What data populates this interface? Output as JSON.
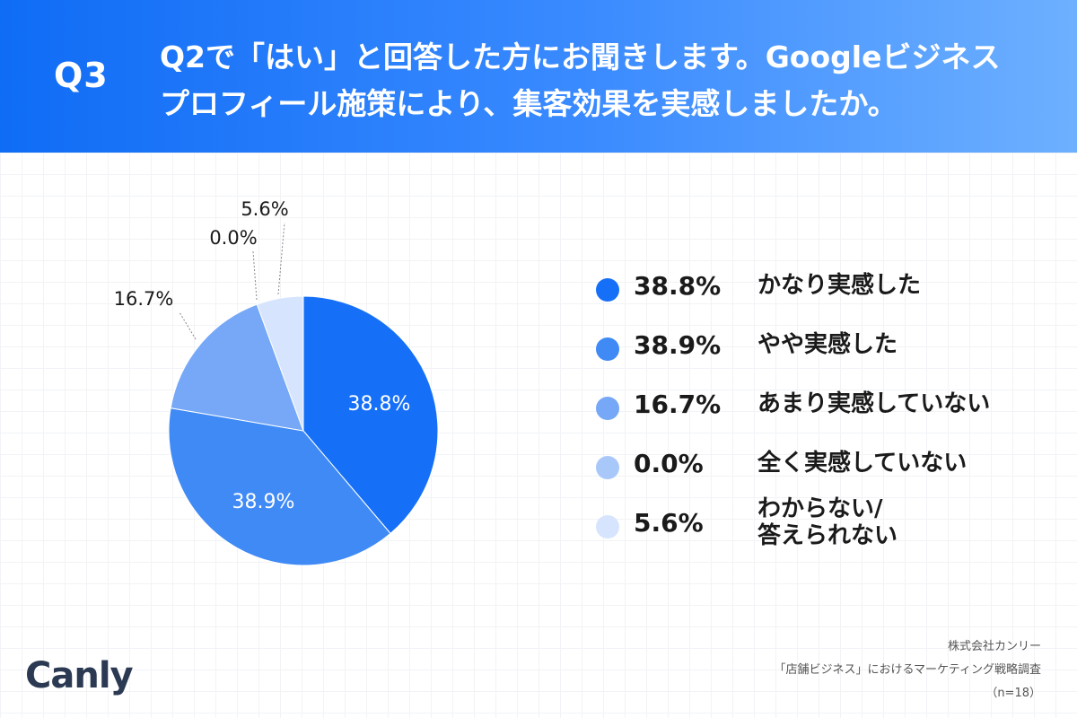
{
  "header": {
    "q_label": "Q3",
    "question_line1": "Q2で「はい」と回答した方にお聞きします。Googleビジネス",
    "question_line2": "プロフィール施策により、集客効果を実感しましたか。"
  },
  "chart_data": {
    "type": "pie",
    "slices": [
      {
        "label": "かなり実感した",
        "value": 38.8,
        "display": "38.8%",
        "color": "#1670f7"
      },
      {
        "label": "やや実感した",
        "value": 38.9,
        "display": "38.9%",
        "color": "#3f8af5"
      },
      {
        "label": "あまり実感していない",
        "value": 16.7,
        "display": "16.7%",
        "color": "#76a8f7"
      },
      {
        "label": "全く実感していない",
        "value": 0.0,
        "display": "0.0%",
        "color": "#a9c8fa"
      },
      {
        "label": "わからない/答えられない",
        "value": 5.6,
        "display": "5.6%",
        "color": "#d6e5fd"
      }
    ],
    "legend_position": "right"
  },
  "legend": [
    {
      "value": "38.8%",
      "label": "かなり実感した",
      "color": "#1670f7"
    },
    {
      "value": "38.9%",
      "label": "やや実感した",
      "color": "#3f8af5"
    },
    {
      "value": "16.7%",
      "label": "あまり実感していない",
      "color": "#76a8f7"
    },
    {
      "value": "0.0%",
      "label": "全く実感していない",
      "color": "#a9c8fa"
    },
    {
      "value": "5.6%",
      "label_line1": "わからない/",
      "label_line2": "答えられない",
      "color": "#d6e5fd"
    }
  ],
  "logo": {
    "text": "Canly"
  },
  "footer": {
    "line1": "株式会社カンリー",
    "line2": "「店舗ビジネス」におけるマーケティング戦略調査",
    "line3": "（n=18）"
  }
}
